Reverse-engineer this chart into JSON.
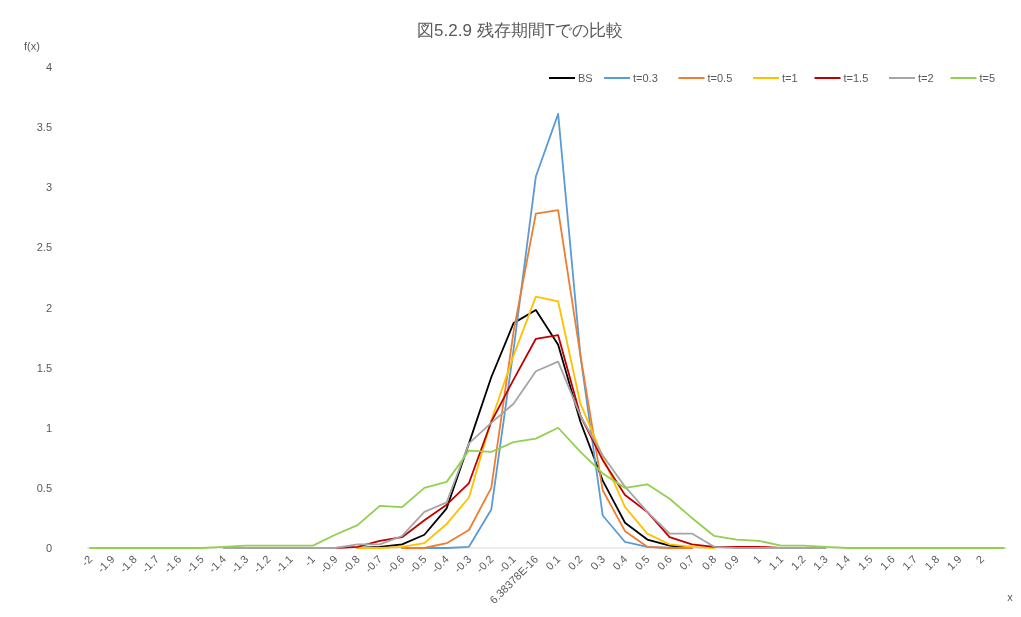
{
  "chart_data": {
    "type": "line",
    "title": "図5.2.9  残存期間Tでの比較",
    "xlabel": "x",
    "ylabel": "f(x)",
    "categories": [
      "-2",
      "-1.9",
      "-1.8",
      "-1.7",
      "-1.6",
      "-1.5",
      "-1.4",
      "-1.3",
      "-1.2",
      "-1.1",
      "-1",
      "-0.9",
      "-0.8",
      "-0.7",
      "-0.6",
      "-0.5",
      "-0.4",
      "-0.3",
      "-0.2",
      "-0.1",
      "6.38378E-16",
      "0.1",
      "0.2",
      "0.3",
      "0.4",
      "0.5",
      "0.6",
      "0.7",
      "0.8",
      "0.9",
      "1",
      "1.1",
      "1.2",
      "1.3",
      "1.4",
      "1.5",
      "1.6",
      "1.7",
      "1.8",
      "1.9",
      "2",
      null
    ],
    "ylim": [
      0,
      4
    ],
    "yticks": [
      0,
      0.5,
      1,
      1.5,
      2,
      2.5,
      3,
      3.5,
      4
    ],
    "grid": false,
    "legend": "top right",
    "marker": "none",
    "line_style": "solid",
    "series": [
      {
        "name": "BS",
        "color": "#000000",
        "values": [
          null,
          null,
          null,
          null,
          null,
          null,
          null,
          null,
          null,
          null,
          null,
          null,
          0,
          0.01,
          0.03,
          0.11,
          0.33,
          0.87,
          1.42,
          1.87,
          1.98,
          1.69,
          1.05,
          0.56,
          0.21,
          0.07,
          0.02,
          0,
          null,
          null,
          null,
          null,
          null,
          null,
          null,
          null,
          null,
          null,
          null,
          null,
          null,
          null
        ]
      },
      {
        "name": "t=0.3",
        "color": "#5b9bd5",
        "values": [
          null,
          null,
          null,
          null,
          null,
          null,
          null,
          null,
          null,
          null,
          null,
          null,
          null,
          null,
          0,
          0,
          0,
          0.01,
          0.32,
          1.65,
          3.09,
          3.61,
          1.6,
          0.27,
          0.05,
          0.01,
          0,
          0,
          null,
          null,
          null,
          null,
          null,
          null,
          null,
          null,
          null,
          null,
          null,
          null,
          null,
          null
        ]
      },
      {
        "name": "t=0.5",
        "color": "#ed7d31",
        "values": [
          null,
          null,
          null,
          null,
          null,
          null,
          null,
          null,
          null,
          null,
          null,
          null,
          null,
          null,
          0,
          0,
          0.04,
          0.15,
          0.5,
          1.8,
          2.78,
          2.81,
          1.6,
          0.48,
          0.14,
          0.01,
          0,
          0,
          null,
          null,
          null,
          null,
          null,
          null,
          null,
          null,
          null,
          null,
          null,
          null,
          null,
          null
        ]
      },
      {
        "name": "t=1",
        "color": "#ffc000",
        "values": [
          null,
          null,
          null,
          null,
          null,
          null,
          null,
          null,
          null,
          null,
          null,
          null,
          0,
          0,
          0.01,
          0.04,
          0.2,
          0.42,
          1.06,
          1.6,
          2.09,
          2.05,
          1.2,
          0.76,
          0.34,
          0.12,
          0.03,
          0.01,
          0,
          null,
          null,
          null,
          null,
          null,
          null,
          null,
          null,
          null,
          null,
          null,
          null,
          null
        ]
      },
      {
        "name": "t=1.5",
        "color": "#c00000",
        "values": [
          null,
          null,
          null,
          null,
          null,
          null,
          null,
          null,
          null,
          null,
          null,
          0,
          0.01,
          0.06,
          0.09,
          0.23,
          0.36,
          0.54,
          1.05,
          1.4,
          1.74,
          1.77,
          1.1,
          0.73,
          0.44,
          0.3,
          0.09,
          0.03,
          0.01,
          0.01,
          0.01,
          0,
          null,
          null,
          null,
          null,
          null,
          null,
          null,
          null,
          null,
          null
        ]
      },
      {
        "name": "t=2",
        "color": "#a5a5a5",
        "values": [
          null,
          null,
          null,
          null,
          null,
          null,
          0,
          0,
          0,
          0,
          0,
          0,
          0.03,
          0.03,
          0.1,
          0.3,
          0.38,
          0.87,
          1.04,
          1.2,
          1.47,
          1.55,
          1.1,
          0.77,
          0.51,
          0.3,
          0.12,
          0.12,
          0.01,
          0,
          0,
          0,
          0,
          0,
          null,
          null,
          null,
          null,
          null,
          null,
          null,
          null
        ]
      },
      {
        "name": "t=5",
        "color": "#92d050",
        "values": [
          0,
          0,
          0,
          0,
          0,
          0,
          0.01,
          0.02,
          0.02,
          0.02,
          0.02,
          0.11,
          0.19,
          0.35,
          0.34,
          0.5,
          0.55,
          0.81,
          0.8,
          0.88,
          0.91,
          1.0,
          0.8,
          0.62,
          0.5,
          0.53,
          0.41,
          0.25,
          0.1,
          0.07,
          0.06,
          0.02,
          0.02,
          0.01,
          0,
          0,
          0,
          0,
          0,
          0,
          0,
          0
        ]
      }
    ]
  }
}
